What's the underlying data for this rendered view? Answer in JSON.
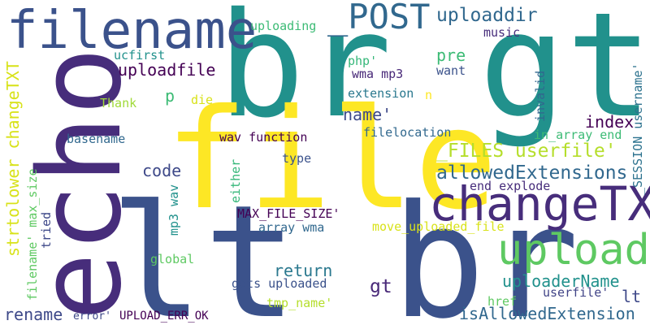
{
  "words": [
    {
      "text": "br gt",
      "color": "#21918c"
    },
    {
      "text": "lt br",
      "color": "#3b528b"
    },
    {
      "text": "file",
      "color": "#fde725"
    },
    {
      "text": "echo",
      "color": "#472d7b"
    },
    {
      "text": "filename",
      "color": "#3b528b"
    },
    {
      "text": "changeTXT",
      "color": "#472d7b"
    },
    {
      "text": "upload",
      "color": "#5ec962"
    },
    {
      "text": "_POST",
      "color": "#31688e"
    },
    {
      "text": "uploaddir",
      "color": "#31688e"
    },
    {
      "text": "_FILES userfile'",
      "color": "#b5de2b"
    },
    {
      "text": "allowedExtensions",
      "color": "#31688e"
    },
    {
      "text": "strtolower changeTXT",
      "color": "#d8e219"
    },
    {
      "text": "uploadfile",
      "color": "#440154"
    },
    {
      "text": "uploading",
      "color": "#3cbb75"
    },
    {
      "text": "music",
      "color": "#472d7b"
    },
    {
      "text": "ucfirst",
      "color": "#21918c"
    },
    {
      "text": "php'",
      "color": "#35b779"
    },
    {
      "text": "wma mp3",
      "color": "#482878"
    },
    {
      "text": "pre",
      "color": "#3cbb75"
    },
    {
      "text": "want",
      "color": "#3b528b"
    },
    {
      "text": "p",
      "color": "#3cbb75"
    },
    {
      "text": "Thank",
      "color": "#a0da39"
    },
    {
      "text": "die",
      "color": "#d8e219"
    },
    {
      "text": "extension",
      "color": "#2a788e"
    },
    {
      "text": "n",
      "color": "#fde725"
    },
    {
      "text": "name'",
      "color": "#3e4989"
    },
    {
      "text": "invalid",
      "color": "#31688e"
    },
    {
      "text": "index",
      "color": "#440154"
    },
    {
      "text": "filelocation",
      "color": "#31688e"
    },
    {
      "text": "in_array end",
      "color": "#3cbb75"
    },
    {
      "text": "_SESSION username'",
      "color": "#2c728e"
    },
    {
      "text": "basename",
      "color": "#31688e"
    },
    {
      "text": "wav function",
      "color": "#440154"
    },
    {
      "text": "code",
      "color": "#3e4989"
    },
    {
      "text": "type",
      "color": "#3b528b"
    },
    {
      "text": "end explode",
      "color": "#472d7b"
    },
    {
      "text": "either",
      "color": "#35b779"
    },
    {
      "text": "mp3 wav",
      "color": "#21918c"
    },
    {
      "text": "MAX_FILE_SIZE'",
      "color": "#440154"
    },
    {
      "text": "array wma",
      "color": "#31688e"
    },
    {
      "text": "move_uploaded_file",
      "color": "#d8e219"
    },
    {
      "text": "filename' max_size",
      "color": "#5ec962"
    },
    {
      "text": "tried",
      "color": "#3e4989"
    },
    {
      "text": "global",
      "color": "#5ec962"
    },
    {
      "text": "return",
      "color": "#2a788e"
    },
    {
      "text": "gets uploaded",
      "color": "#3b528b"
    },
    {
      "text": "gt",
      "color": "#482878"
    },
    {
      "text": "uploaderName",
      "color": "#21918c"
    },
    {
      "text": "lt",
      "color": "#3e4989"
    },
    {
      "text": "userfile'",
      "color": "#414487"
    },
    {
      "text": "tmp_name'",
      "color": "#b5de2b"
    },
    {
      "text": "href",
      "color": "#5ec962"
    },
    {
      "text": "isAllowedExtension",
      "color": "#31688e"
    },
    {
      "text": "rename",
      "color": "#3e4989"
    },
    {
      "text": "error'",
      "color": "#3e4989"
    },
    {
      "text": "UPLOAD_ERR_OK",
      "color": "#440154"
    }
  ]
}
